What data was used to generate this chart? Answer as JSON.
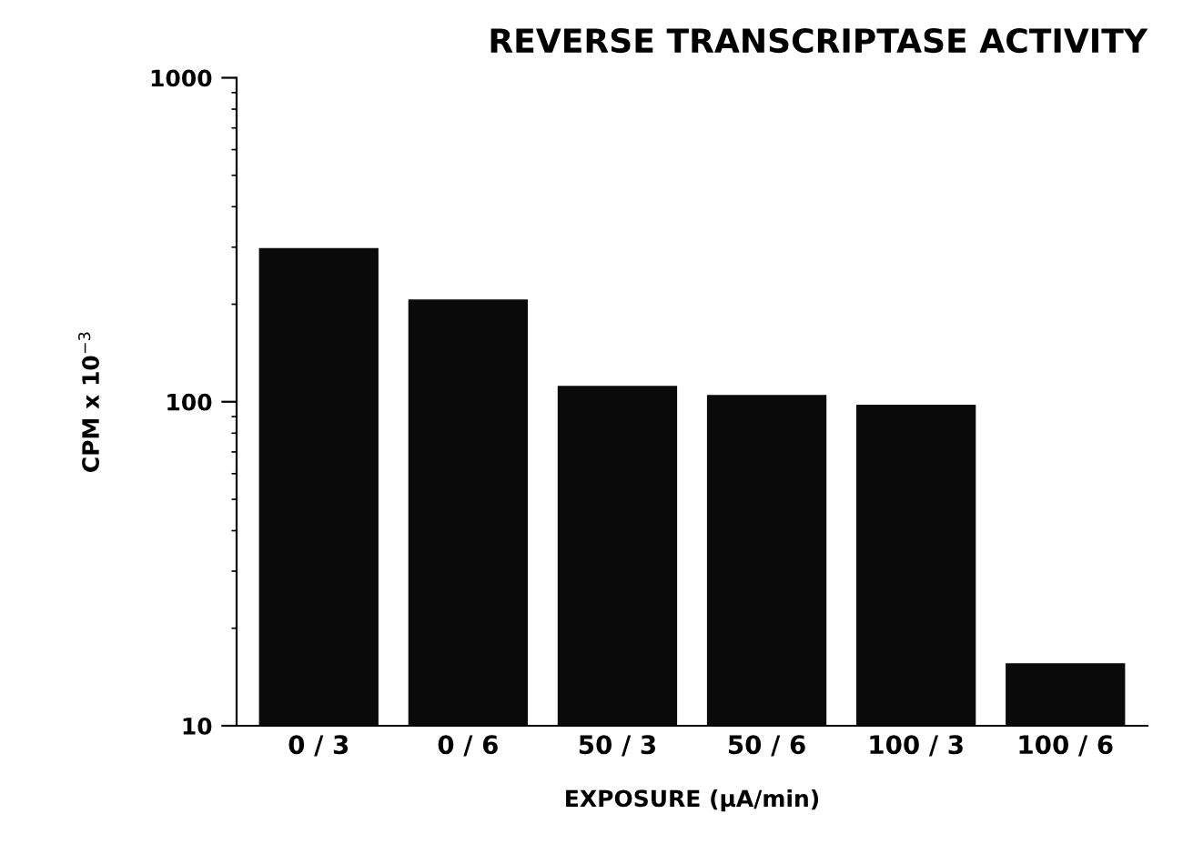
{
  "chart_data": {
    "type": "bar",
    "title": "REVERSE TRANSCRIPTASE ACTIVITY",
    "xlabel": "EXPOSURE (µA/min)",
    "ylabel": "CPM x 10$^{−3}$",
    "categories": [
      "0 / 3",
      "0 / 6",
      "50 / 3",
      "50 / 6",
      "100 / 3",
      "100 / 6"
    ],
    "values": [
      298,
      207,
      112,
      105,
      98,
      15.6
    ],
    "color": "#0a0a0a",
    "log": true,
    "ylim": [
      10,
      1000
    ],
    "yticks": [
      10,
      100,
      1000
    ],
    "grid": false,
    "legend": false
  }
}
